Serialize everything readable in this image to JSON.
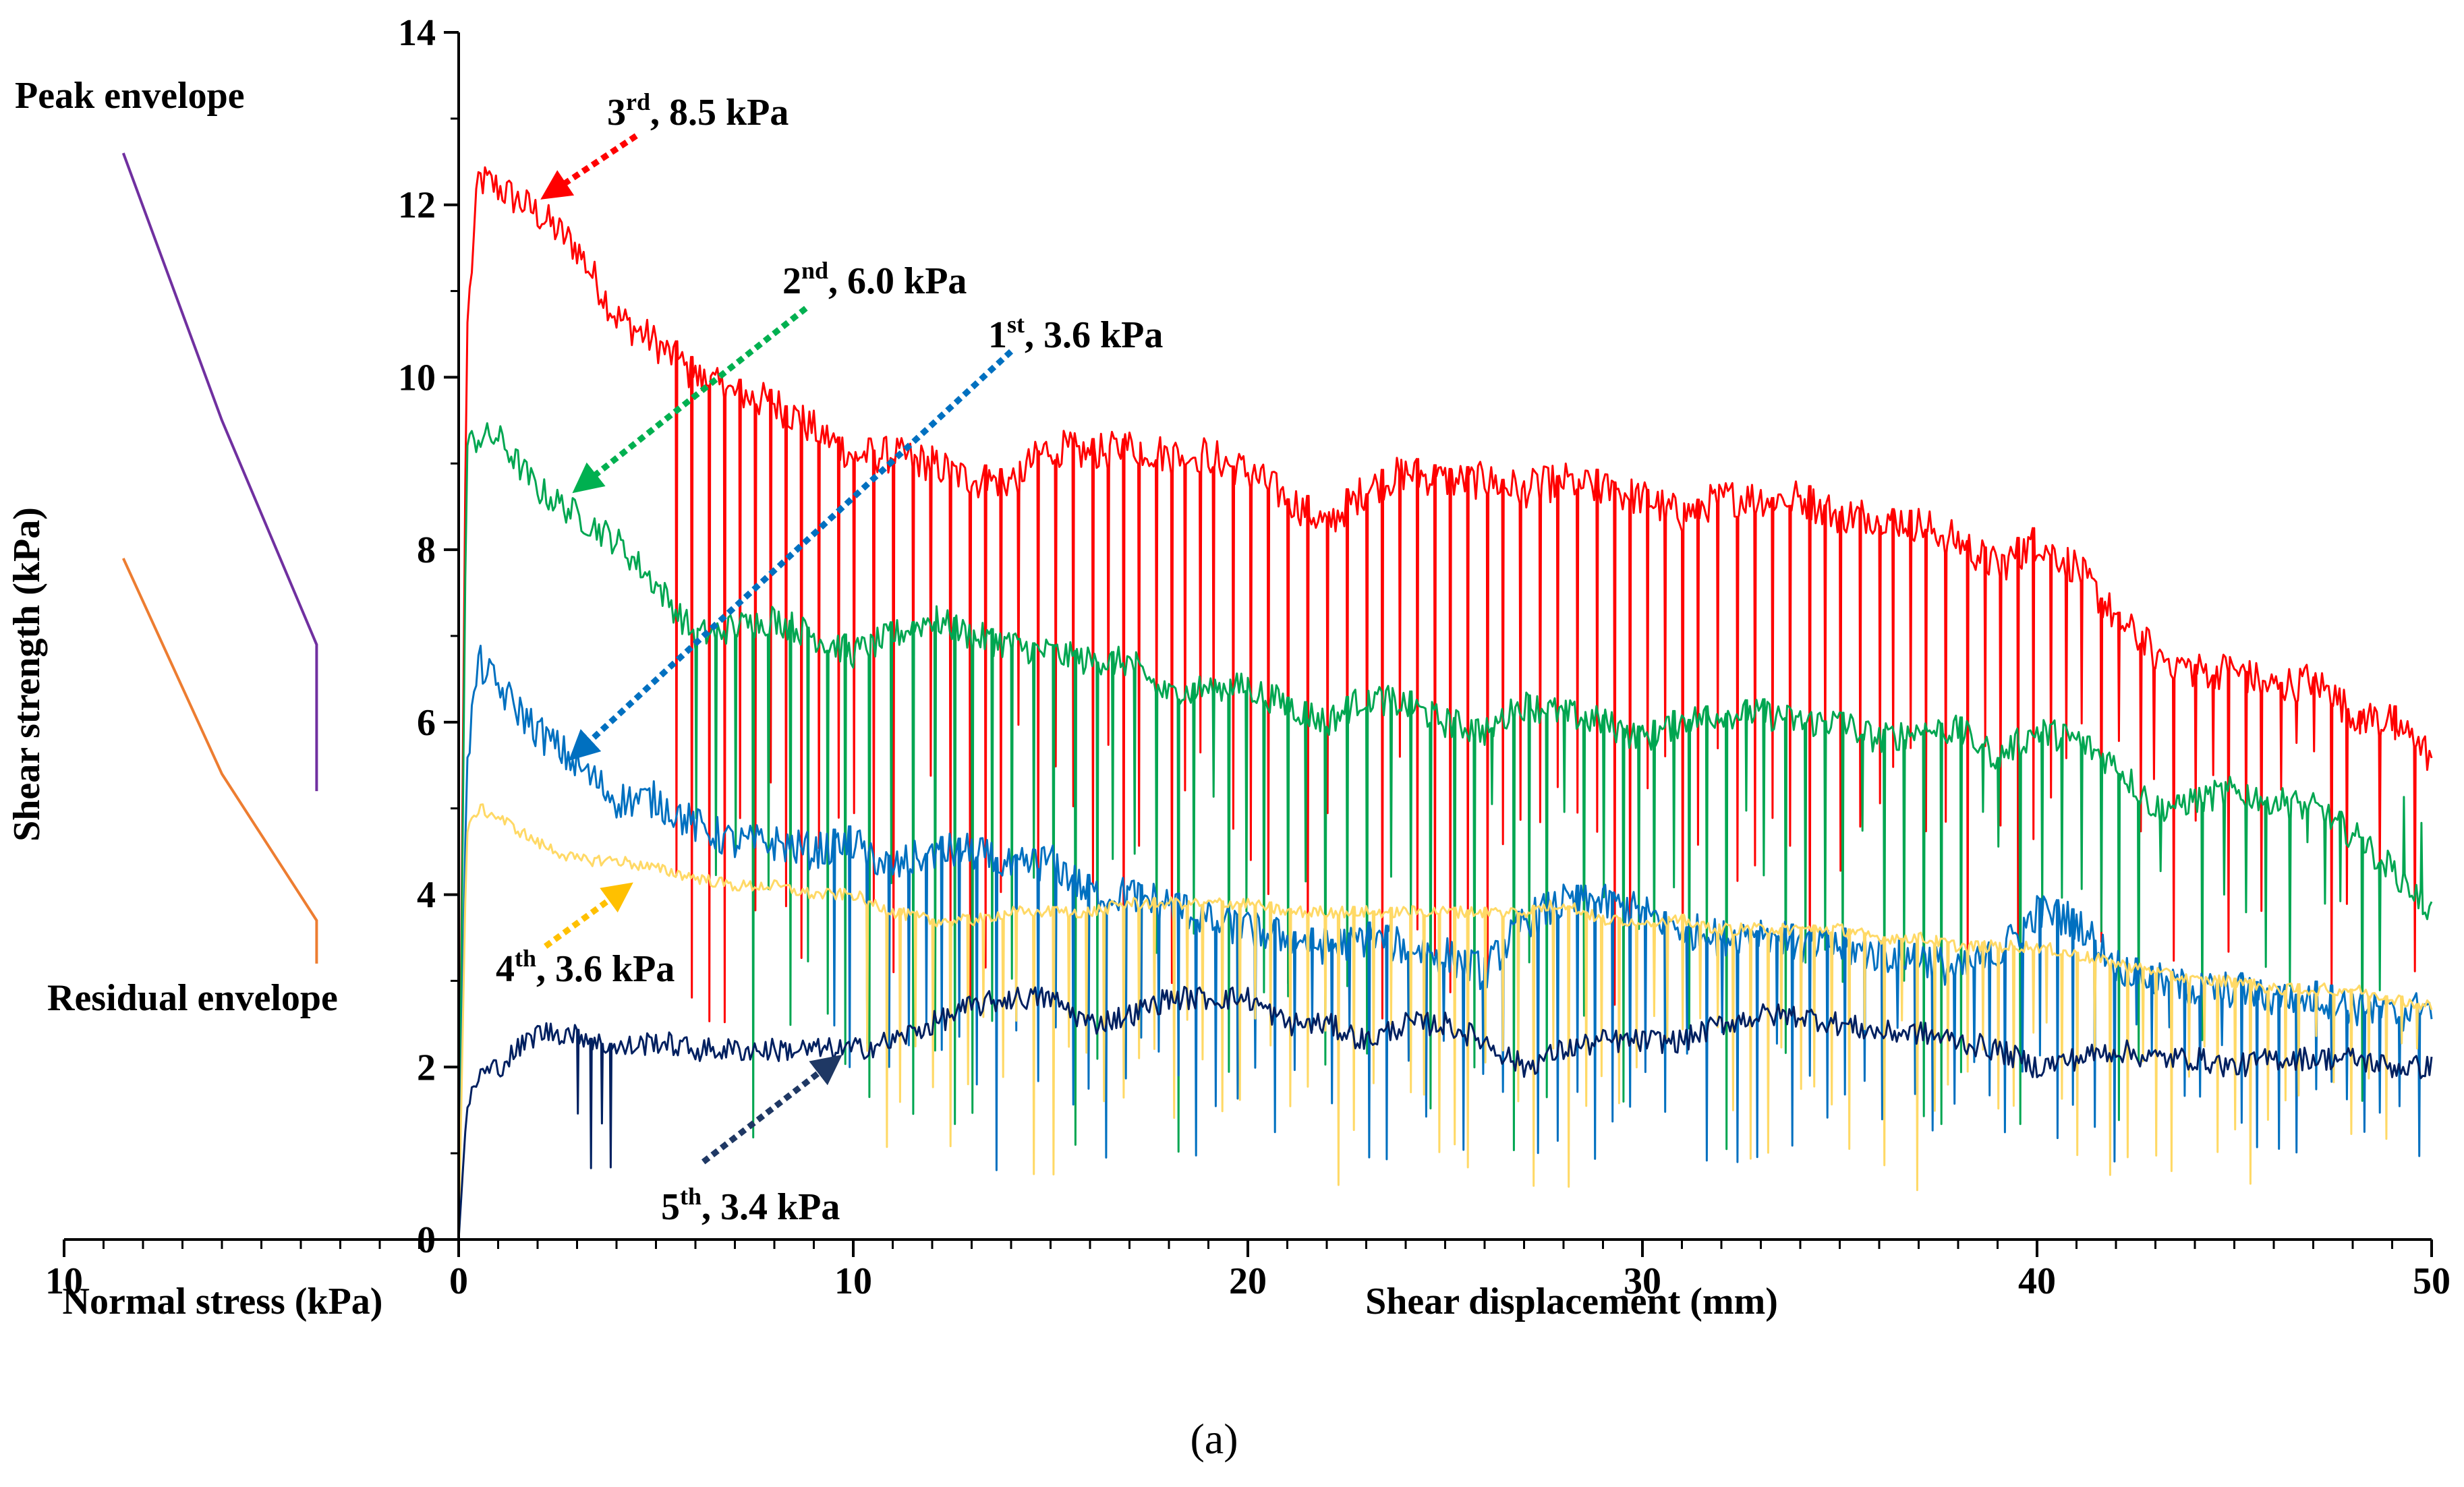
{
  "chart_data": {
    "type": "line",
    "caption": "(a)",
    "left_panel": {
      "xlabel": "Normal stress (kPa)",
      "x_tick_labels": [
        "10",
        "0"
      ],
      "xlim": [
        10,
        0
      ],
      "series": [
        {
          "name": "Peak envelope",
          "color": "#7030A0",
          "points": [
            [
              8.5,
              12.6
            ],
            [
              6.0,
              9.5
            ],
            [
              3.6,
              6.9
            ],
            [
              3.6,
              5.2
            ]
          ]
        },
        {
          "name": "Residual envelope",
          "color": "#ED7D31",
          "points": [
            [
              8.5,
              7.9
            ],
            [
              6.0,
              5.4
            ],
            [
              3.6,
              3.7
            ],
            [
              3.6,
              3.2
            ]
          ]
        }
      ]
    },
    "main_panel": {
      "xlabel": "Shear displacement (mm)",
      "ylabel": "Shear strength (kPa)",
      "xlim": [
        0,
        50
      ],
      "ylim": [
        0,
        14
      ],
      "x_tick_labels": [
        "0",
        "10",
        "20",
        "30",
        "40",
        "50"
      ],
      "y_tick_labels": [
        "0",
        "2",
        "4",
        "6",
        "8",
        "10",
        "12",
        "14"
      ],
      "series": [
        {
          "name": "3rd, 8.5 kPa",
          "color": "#FF0000",
          "x": [
            0,
            0.2,
            0.5,
            1,
            2,
            3,
            4,
            5,
            6,
            7,
            8,
            9,
            10,
            11,
            12,
            13,
            14,
            15,
            16,
            17,
            18,
            19,
            20,
            21,
            22,
            23,
            24,
            25,
            26,
            27,
            28,
            29,
            30,
            31,
            32,
            33,
            34,
            35,
            36,
            37,
            38,
            39,
            40,
            41,
            42,
            43,
            44,
            45,
            46,
            47,
            48,
            49,
            50
          ],
          "y": [
            0,
            10.5,
            12.3,
            12.2,
            11.9,
            11.5,
            10.7,
            10.4,
            10.0,
            9.8,
            9.7,
            9.4,
            9.1,
            9.1,
            9.0,
            8.8,
            8.8,
            9.2,
            9.1,
            9.2,
            9.1,
            9.1,
            8.9,
            8.6,
            8.3,
            8.7,
            8.9,
            8.8,
            8.8,
            8.7,
            8.8,
            8.7,
            8.6,
            8.4,
            8.6,
            8.6,
            8.6,
            8.4,
            8.4,
            8.3,
            8.1,
            7.8,
            8.1,
            7.8,
            7.2,
            6.8,
            6.6,
            6.6,
            6.4,
            6.5,
            6.1,
            6.0,
            5.6
          ]
        },
        {
          "name": "2nd, 6.0 kPa",
          "color": "#00A651",
          "x": [
            0,
            0.2,
            0.5,
            1,
            2,
            3,
            4,
            5,
            6,
            7,
            8,
            9,
            10,
            11,
            12,
            13,
            14,
            15,
            16,
            17,
            18,
            19,
            20,
            21,
            22,
            23,
            24,
            25,
            26,
            27,
            28,
            29,
            30,
            31,
            32,
            33,
            34,
            35,
            36,
            37,
            38,
            39,
            40,
            41,
            42,
            43,
            44,
            45,
            46,
            47,
            48,
            49,
            50
          ],
          "y": [
            0,
            9.2,
            9.3,
            9.3,
            8.7,
            8.4,
            8.1,
            7.6,
            7.0,
            7.1,
            7.2,
            7.0,
            6.8,
            7.0,
            7.2,
            7.0,
            6.9,
            6.8,
            6.7,
            6.7,
            6.3,
            6.4,
            6.4,
            6.2,
            6.0,
            6.3,
            6.2,
            6.0,
            5.9,
            6.2,
            6.1,
            6.0,
            5.8,
            6.0,
            6.1,
            6.1,
            6.0,
            6.0,
            5.8,
            5.9,
            5.9,
            5.6,
            5.9,
            5.8,
            5.5,
            5.0,
            5.1,
            5.2,
            5.1,
            5.0,
            4.7,
            4.3,
            3.8
          ]
        },
        {
          "name": "1st, 3.6 kPa",
          "color": "#0070C0",
          "x": [
            0,
            0.2,
            0.5,
            1,
            2,
            3,
            4,
            5,
            6,
            7,
            8,
            9,
            10,
            11,
            12,
            13,
            14,
            15,
            16,
            17,
            18,
            19,
            20,
            21,
            22,
            23,
            24,
            25,
            26,
            27,
            28,
            29,
            30,
            31,
            32,
            33,
            34,
            35,
            36,
            37,
            38,
            39,
            40,
            41,
            42,
            43,
            44,
            45,
            46,
            47,
            48,
            49,
            50
          ],
          "y": [
            0,
            5.5,
            6.7,
            6.4,
            5.9,
            5.5,
            5.1,
            5.1,
            4.8,
            4.6,
            4.6,
            4.5,
            4.6,
            4.3,
            4.5,
            4.5,
            4.3,
            4.4,
            4.0,
            4.0,
            3.9,
            3.7,
            3.6,
            3.5,
            3.4,
            3.5,
            3.4,
            3.3,
            3.1,
            3.7,
            3.9,
            3.9,
            3.8,
            3.6,
            3.5,
            3.6,
            3.4,
            3.4,
            3.3,
            3.3,
            3.1,
            3.3,
            3.8,
            3.7,
            3.2,
            3.0,
            2.9,
            2.9,
            2.8,
            2.8,
            2.7,
            2.6,
            2.7
          ]
        },
        {
          "name": "4th, 3.6 kPa",
          "color": "#FFD966",
          "x": [
            0,
            0.2,
            0.5,
            1,
            2,
            3,
            4,
            5,
            6,
            7,
            8,
            9,
            10,
            11,
            12,
            13,
            14,
            15,
            16,
            17,
            18,
            19,
            20,
            21,
            22,
            23,
            24,
            25,
            26,
            27,
            28,
            29,
            30,
            31,
            32,
            33,
            34,
            35,
            36,
            37,
            38,
            39,
            40,
            41,
            42,
            43,
            44,
            45,
            46,
            47,
            48,
            49,
            50
          ],
          "y": [
            0,
            4.7,
            5.0,
            4.9,
            4.6,
            4.4,
            4.4,
            4.3,
            4.2,
            4.1,
            4.1,
            4.0,
            4.0,
            3.8,
            3.7,
            3.7,
            3.8,
            3.8,
            3.8,
            3.9,
            3.9,
            3.9,
            3.9,
            3.8,
            3.8,
            3.8,
            3.8,
            3.8,
            3.8,
            3.8,
            3.9,
            3.7,
            3.7,
            3.7,
            3.6,
            3.6,
            3.6,
            3.6,
            3.5,
            3.5,
            3.4,
            3.4,
            3.4,
            3.3,
            3.2,
            3.1,
            3.0,
            3.0,
            2.9,
            2.9,
            2.9,
            2.8,
            2.7
          ]
        },
        {
          "name": "5th, 3.4 kPa",
          "color": "#002060",
          "x": [
            0,
            0.2,
            0.5,
            1,
            2,
            3,
            4,
            5,
            6,
            7,
            8,
            9,
            10,
            11,
            12,
            13,
            14,
            15,
            16,
            17,
            18,
            19,
            20,
            21,
            22,
            23,
            24,
            25,
            26,
            27,
            28,
            29,
            30,
            31,
            32,
            33,
            34,
            35,
            36,
            37,
            38,
            39,
            40,
            41,
            42,
            43,
            44,
            45,
            46,
            47,
            48,
            49,
            50
          ],
          "y": [
            0,
            1.5,
            1.9,
            2.0,
            2.4,
            2.4,
            2.2,
            2.3,
            2.2,
            2.2,
            2.2,
            2.2,
            2.2,
            2.3,
            2.5,
            2.7,
            2.8,
            2.8,
            2.5,
            2.6,
            2.8,
            2.8,
            2.8,
            2.5,
            2.5,
            2.3,
            2.5,
            2.5,
            2.3,
            2.0,
            2.2,
            2.3,
            2.3,
            2.3,
            2.5,
            2.6,
            2.6,
            2.5,
            2.4,
            2.4,
            2.3,
            2.2,
            2.0,
            2.1,
            2.2,
            2.1,
            2.1,
            2.0,
            2.1,
            2.1,
            2.1,
            2.0,
            2.0
          ]
        }
      ]
    },
    "annotations": [
      {
        "label_main": "3",
        "label_sup": "rd",
        "label_rest": ", 8.5 kPa",
        "color": "#FF0000",
        "tip": [
          2.2,
          12.1
        ],
        "tail": [
          4.5,
          12.8
        ]
      },
      {
        "label_main": "2",
        "label_sup": "nd",
        "label_rest": ", 6.0 kPa",
        "color": "#00B050",
        "tip": [
          3.0,
          8.7
        ],
        "tail": [
          8.8,
          10.8
        ]
      },
      {
        "label_main": "1",
        "label_sup": "st",
        "label_rest": ", 3.6 kPa",
        "color": "#0070C0",
        "tip": [
          2.9,
          5.6
        ],
        "tail": [
          14.0,
          10.3
        ]
      },
      {
        "label_main": "4",
        "label_sup": "th",
        "label_rest": ", 3.6 kPa",
        "color": "#FFC000",
        "tip": [
          4.3,
          4.1
        ],
        "tail": [
          2.2,
          3.4
        ]
      },
      {
        "label_main": "5",
        "label_sup": "th",
        "label_rest": ", 3.4 kPa",
        "color": "#1F3864",
        "tip": [
          9.6,
          2.1
        ],
        "tail": [
          6.2,
          0.9
        ]
      }
    ]
  }
}
